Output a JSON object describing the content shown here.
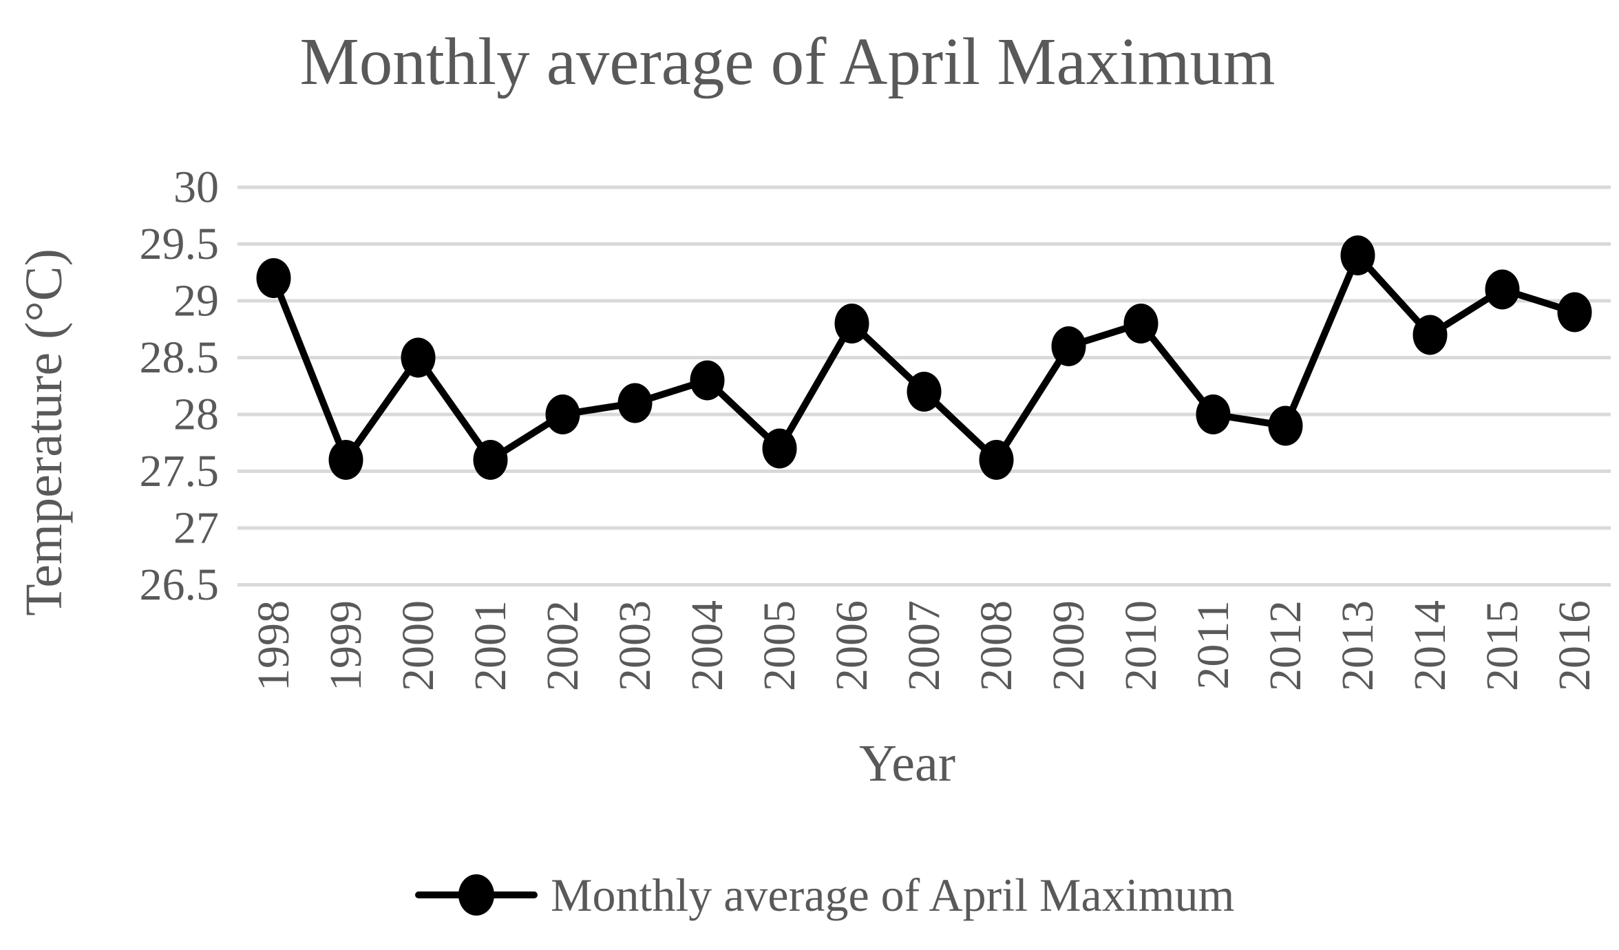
{
  "chart_data": {
    "type": "line",
    "title": "Monthly average of April Maximum",
    "xlabel": "Year",
    "ylabel": "Temperature (°C)",
    "categories": [
      "1998",
      "1999",
      "2000",
      "2001",
      "2002",
      "2003",
      "2004",
      "2005",
      "2006",
      "2007",
      "2008",
      "2009",
      "2010",
      "2011",
      "2012",
      "2013",
      "2014",
      "2015",
      "2016"
    ],
    "series": [
      {
        "name": "Monthly average of April Maximum",
        "values": [
          29.2,
          27.6,
          28.5,
          27.6,
          28.0,
          28.1,
          28.3,
          27.7,
          28.8,
          28.2,
          27.6,
          28.6,
          28.8,
          28.0,
          27.9,
          29.4,
          28.7,
          29.1,
          28.9
        ]
      }
    ],
    "ylim": [
      26.5,
      30
    ],
    "ytick_step": 0.5,
    "yticks": [
      "30",
      "29.5",
      "29",
      "28.5",
      "28",
      "27.5",
      "27",
      "26.5"
    ],
    "grid": true,
    "legend_position": "bottom",
    "marker": "filled-circle",
    "colors": {
      "series": "#000000",
      "text": "#595959",
      "gridline": "#D9D9D9",
      "background": "#FFFFFF"
    }
  }
}
